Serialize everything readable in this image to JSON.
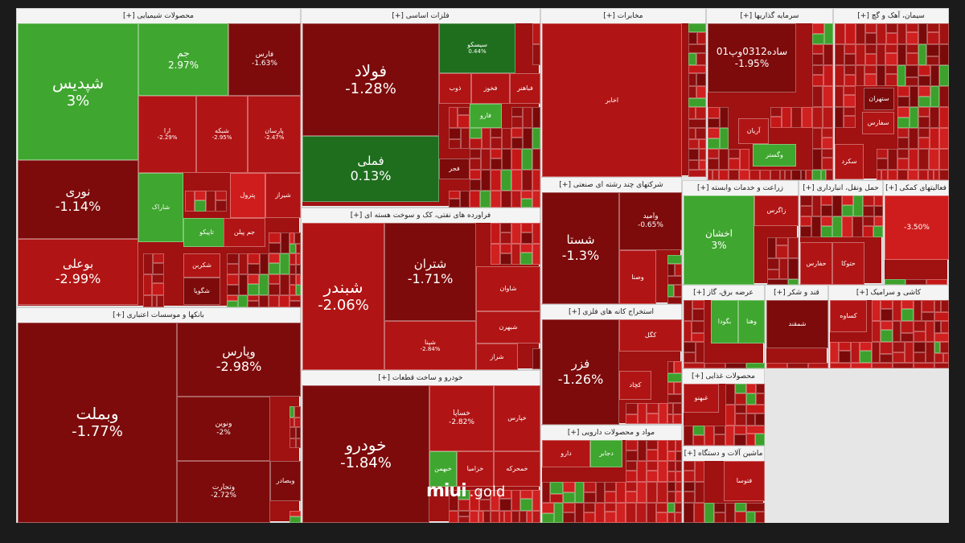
{
  "colors": {
    "strong_down": "#7d0b0b",
    "down": "#b11414",
    "mild_down": "#cf1d1d",
    "up": "#3fa62f",
    "strong_up": "#1e6e1e"
  },
  "brand": {
    "name": "miui",
    "tld": ".gold"
  },
  "sectors": [
    {
      "key": "chemical",
      "title": "محصولات شیمیایی [+]",
      "tiles": [
        {
          "name": "شپدیس",
          "change": "3%",
          "color": "up",
          "size": "xl"
        },
        {
          "name": "جم",
          "change": "2.97%",
          "color": "up",
          "size": "m"
        },
        {
          "name": "فارس",
          "change": "-1.63%",
          "color": "strong_down",
          "size": "s"
        },
        {
          "name": "نوری",
          "change": "-1.14%",
          "color": "strong_down",
          "size": "l"
        },
        {
          "name": "ارا",
          "change": "-2.29%",
          "color": "down",
          "size": "xs"
        },
        {
          "name": "شبکه",
          "change": "-2.95%",
          "color": "down",
          "size": "xs"
        },
        {
          "name": "پارسان",
          "change": "-2.47%",
          "color": "down",
          "size": "xs"
        },
        {
          "name": "بوعلی",
          "change": "-2.99%",
          "color": "down",
          "size": "l"
        },
        {
          "name": "شاراک",
          "change": "",
          "color": "up",
          "size": "xs"
        },
        {
          "name": "پترول",
          "change": "",
          "color": "mild_down",
          "size": "xs"
        },
        {
          "name": "شیراز",
          "change": "",
          "color": "down",
          "size": "xs"
        },
        {
          "name": "تاپیکو",
          "change": "",
          "color": "up",
          "size": "xs"
        },
        {
          "name": "جم پیلن",
          "change": "",
          "color": "down",
          "size": "xs"
        },
        {
          "name": "شکربن",
          "change": "",
          "color": "down",
          "size": "xs"
        },
        {
          "name": "شگویا",
          "change": "",
          "color": "strong_down",
          "size": "xs"
        }
      ]
    },
    {
      "key": "basic_metals",
      "title": "فلزات اساسی [+]",
      "tiles": [
        {
          "name": "فولاد",
          "change": "-1.28%",
          "color": "strong_down",
          "size": "xl"
        },
        {
          "name": "فملی",
          "change": "0.13%",
          "color": "strong_up",
          "size": "l"
        },
        {
          "name": "سیسکو",
          "change": "0.44%",
          "color": "strong_up",
          "size": "xs"
        },
        {
          "name": "فخوز",
          "change": "",
          "color": "down",
          "size": "xs"
        },
        {
          "name": "فباهنر",
          "change": "",
          "color": "down",
          "size": "xs"
        },
        {
          "name": "ذوب",
          "change": "",
          "color": "down",
          "size": "xs"
        },
        {
          "name": "فارو",
          "change": "",
          "color": "up",
          "size": "xs"
        },
        {
          "name": "فجر",
          "change": "",
          "color": "strong_down",
          "size": "xs"
        }
      ]
    },
    {
      "key": "refinery",
      "title": "فراورده های نفتی، کک و سوخت هسته ای [+]",
      "tiles": [
        {
          "name": "شبندر",
          "change": "-2.06%",
          "color": "down",
          "size": "xl"
        },
        {
          "name": "شتران",
          "change": "-1.71%",
          "color": "strong_down",
          "size": "l"
        },
        {
          "name": "شپنا",
          "change": "-2.84%",
          "color": "down",
          "size": "xs"
        },
        {
          "name": "شاوان",
          "change": "",
          "color": "down",
          "size": "xs"
        },
        {
          "name": "شبهرن",
          "change": "",
          "color": "down",
          "size": "xs"
        },
        {
          "name": "شراز",
          "change": "",
          "color": "down",
          "size": "xs"
        }
      ]
    },
    {
      "key": "banks",
      "title": "بانکها و موسسات اعتباری [+]",
      "tiles": [
        {
          "name": "وبملت",
          "change": "-1.77%",
          "color": "strong_down",
          "size": "xl"
        },
        {
          "name": "وپارس",
          "change": "-2.98%",
          "color": "strong_down",
          "size": "l"
        },
        {
          "name": "ونوین",
          "change": "-2%",
          "color": "strong_down",
          "size": "s"
        },
        {
          "name": "وتجارت",
          "change": "-2.72%",
          "color": "strong_down",
          "size": "s"
        },
        {
          "name": "وبصادر",
          "change": "",
          "color": "strong_down",
          "size": "xs"
        }
      ]
    },
    {
      "key": "auto",
      "title": "خودرو و ساخت قطعات [+]",
      "tiles": [
        {
          "name": "خودرو",
          "change": "-1.84%",
          "color": "strong_down",
          "size": "xl"
        },
        {
          "name": "خساپا",
          "change": "-2.82%",
          "color": "down",
          "size": "s"
        },
        {
          "name": "خپارس",
          "change": "",
          "color": "down",
          "size": "xs"
        },
        {
          "name": "خزامیا",
          "change": "",
          "color": "down",
          "size": "xs"
        },
        {
          "name": "خمحرکه",
          "change": "",
          "color": "down",
          "size": "xs"
        },
        {
          "name": "خبهمن",
          "change": "",
          "color": "up",
          "size": "xs"
        }
      ]
    },
    {
      "key": "mining",
      "title": "استخراج کانه های فلزی [+]",
      "tiles": [
        {
          "name": "فزر",
          "change": "-1.26%",
          "color": "strong_down",
          "size": "l"
        },
        {
          "name": "کگل",
          "change": "",
          "color": "down",
          "size": "xs"
        },
        {
          "name": "کچاد",
          "change": "",
          "color": "down",
          "size": "xs"
        }
      ]
    },
    {
      "key": "telecom",
      "title": "مخابرات [+]",
      "tiles": [
        {
          "name": "اخابر",
          "change": "",
          "color": "down",
          "size": "xs"
        }
      ]
    },
    {
      "key": "multi",
      "title": "شرکتهای چند رشته ای صنعتی [+]",
      "tiles": [
        {
          "name": "شستا",
          "change": "-1.3%",
          "color": "strong_down",
          "size": "l"
        },
        {
          "name": "وامید",
          "change": "-0.65%",
          "color": "strong_down",
          "size": "s"
        },
        {
          "name": "وصنا",
          "change": "",
          "color": "down",
          "size": "xs"
        }
      ]
    },
    {
      "key": "pharma",
      "title": "مواد و محصولات دارویی [+]",
      "tiles": [
        {
          "name": "دارو",
          "change": "",
          "color": "down",
          "size": "xs"
        },
        {
          "name": "دجابر",
          "change": "",
          "color": "up",
          "size": "xs"
        }
      ]
    },
    {
      "key": "investment",
      "title": "سرمایه گذاریها [+]",
      "tiles": [
        {
          "name": "ساده0312وپ01",
          "change": "-1.95%",
          "color": "strong_down",
          "size": "m"
        },
        {
          "name": "وگستر",
          "change": "",
          "color": "up",
          "size": "xs"
        },
        {
          "name": "آریان",
          "change": "",
          "color": "down",
          "size": "xs"
        }
      ]
    },
    {
      "key": "cement",
      "title": "سیمان، آهک و گچ [+]",
      "tiles": [
        {
          "name": "ستهران",
          "change": "",
          "color": "strong_down",
          "size": "xs"
        },
        {
          "name": "سفارس",
          "change": "",
          "color": "down",
          "size": "xs"
        },
        {
          "name": "سکرد",
          "change": "",
          "color": "down",
          "size": "xs"
        }
      ]
    },
    {
      "key": "farming",
      "title": "زراعت و خدمات وابسته [+]",
      "tiles": [
        {
          "name": "اخشان",
          "change": "3%",
          "color": "up",
          "size": "m"
        },
        {
          "name": "زاگرس",
          "change": "",
          "color": "down",
          "size": "xs"
        }
      ]
    },
    {
      "key": "transport",
      "title": "حمل ونقل، انبارداری [+]",
      "tiles": [
        {
          "name": "حفارس",
          "change": "",
          "color": "down",
          "size": "xs"
        },
        {
          "name": "حتوکا",
          "change": "",
          "color": "down",
          "size": "xs"
        }
      ]
    },
    {
      "key": "multi_products",
      "title": "فعالیتهای کمکی [+]",
      "tiles": [
        {
          "name": "",
          "change": "-3.50%",
          "color": "mild_down",
          "size": "s"
        }
      ]
    },
    {
      "key": "utilities",
      "title": "عرضه برق، گاز [+]",
      "tiles": [
        {
          "name": "بگودا",
          "change": "",
          "color": "up",
          "size": "xs"
        },
        {
          "name": "وهنا",
          "change": "",
          "color": "up",
          "size": "xs"
        }
      ]
    },
    {
      "key": "sugar",
      "title": "قند و شکر [+]",
      "tiles": [
        {
          "name": "شمقند",
          "change": "",
          "color": "strong_down",
          "size": "xs"
        }
      ]
    },
    {
      "key": "tile",
      "title": "کاشی و سرامیک [+]",
      "tiles": [
        {
          "name": "کساوه",
          "change": "",
          "color": "down",
          "size": "xs"
        }
      ]
    },
    {
      "key": "food",
      "title": "محصولات غذایی [+]",
      "tiles": [
        {
          "name": "غبهنو",
          "change": "",
          "color": "down",
          "size": "xs"
        }
      ]
    },
    {
      "key": "machinery",
      "title": "ماشین آلات و دستگاه [+]",
      "tiles": [
        {
          "name": "فتوسا",
          "change": "",
          "color": "down",
          "size": "xs"
        }
      ]
    }
  ]
}
